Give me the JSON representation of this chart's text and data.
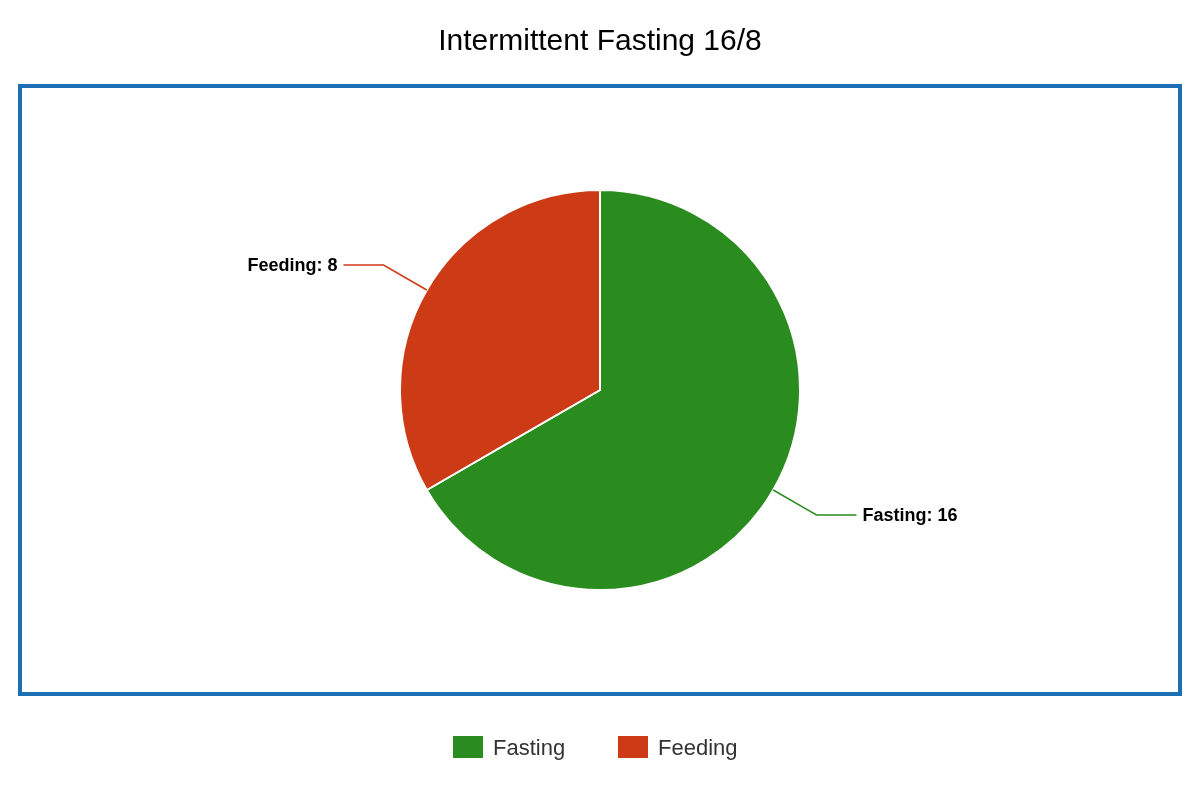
{
  "chart_data": {
    "type": "pie",
    "title": "Intermittent Fasting 16/8",
    "categories": [
      "Fasting",
      "Feeding"
    ],
    "values": [
      16,
      8
    ],
    "value_labels": [
      "Fasting: 16",
      "Feeding: 8"
    ],
    "colors": [
      "#2a8c1e",
      "#cc3a16"
    ],
    "legend": "bottom"
  }
}
